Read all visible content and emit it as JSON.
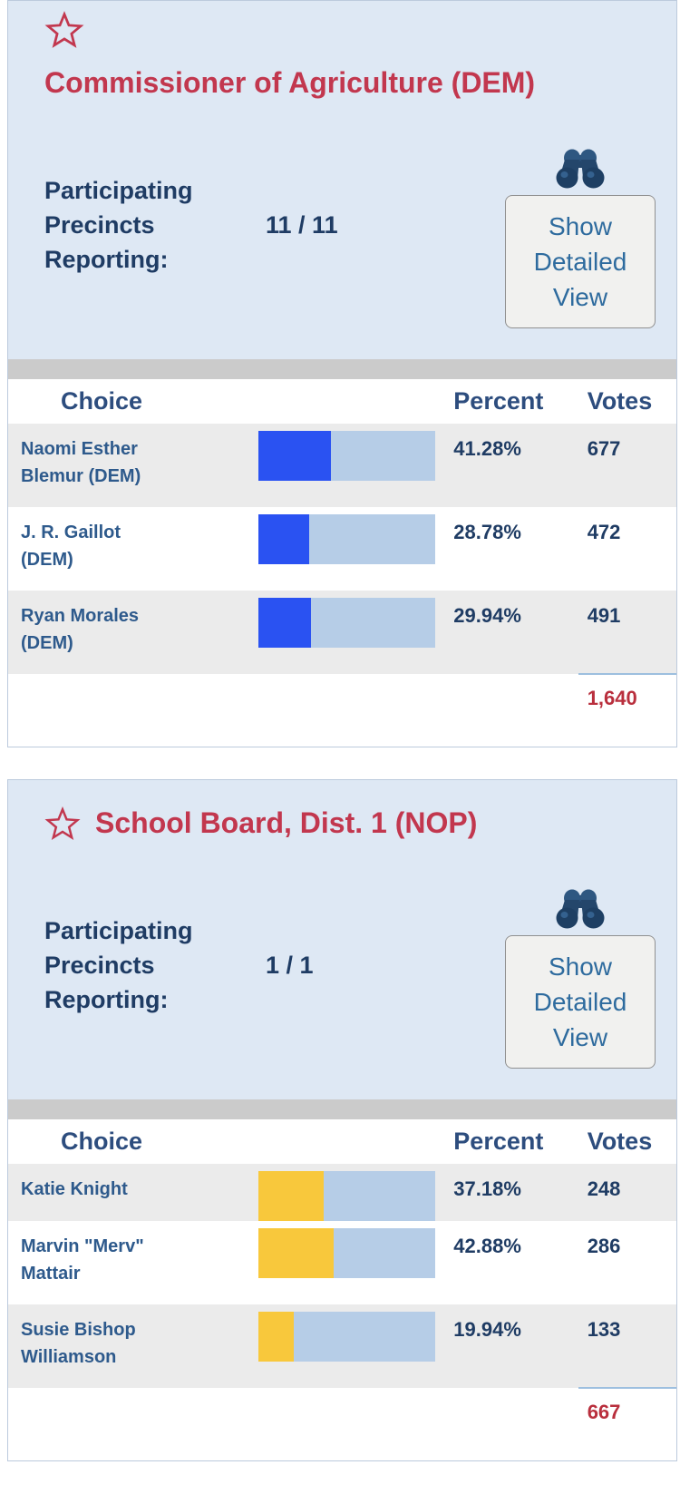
{
  "colors": {
    "card_bg": "#dee8f4",
    "card_border": "#bccadd",
    "title_red": "#c2374e",
    "navy_dark": "#1f3c64",
    "navy_text": "#2d4d7e",
    "name_blue": "#2e5a8c",
    "strip_gray": "#cbcbcb",
    "row_gray": "#ebebeb",
    "bar_track": "#b6cde7",
    "total_red": "#b92f3d",
    "total_rule": "#9dbfdf",
    "button_bg": "#f1f1ef",
    "button_border": "#909090",
    "button_text": "#2e6b9e",
    "binocular_dark": "#1e3f63",
    "binocular_mid": "#24466b",
    "binocular_light": "#2e5781"
  },
  "icons": {
    "star": "star-outline",
    "binoculars": "binoculars"
  },
  "contests": [
    {
      "title": "Commissioner of Agriculture (DEM)",
      "precincts_label": "Participating Precincts Reporting:",
      "precincts_value": "11 / 11",
      "detail_button_label": "Show Detailed View",
      "bar_color": "#2a52f2",
      "headers": {
        "choice": "Choice",
        "percent": "Percent",
        "votes": "Votes"
      },
      "rows": [
        {
          "choice": "Naomi Esther Blemur (DEM)",
          "percent": "41.28%",
          "votes": "677",
          "pct": 41.28
        },
        {
          "choice": "J. R. Gaillot (DEM)",
          "percent": "28.78%",
          "votes": "472",
          "pct": 28.78
        },
        {
          "choice": "Ryan Morales (DEM)",
          "percent": "29.94%",
          "votes": "491",
          "pct": 29.94
        }
      ],
      "total_votes": "1,640"
    },
    {
      "title": "School Board, Dist. 1 (NOP)",
      "precincts_label": "Participating Precincts Reporting:",
      "precincts_value": "1 / 1",
      "detail_button_label": "Show Detailed View",
      "bar_color": "#f8c83c",
      "headers": {
        "choice": "Choice",
        "percent": "Percent",
        "votes": "Votes"
      },
      "rows": [
        {
          "choice": "Katie Knight",
          "percent": "37.18%",
          "votes": "248",
          "pct": 37.18
        },
        {
          "choice": "Marvin \"Merv\" Mattair",
          "percent": "42.88%",
          "votes": "286",
          "pct": 42.88
        },
        {
          "choice": "Susie Bishop Williamson",
          "percent": "19.94%",
          "votes": "133",
          "pct": 19.94
        }
      ],
      "total_votes": "667"
    }
  ],
  "chart_data": [
    {
      "type": "bar",
      "title": "Commissioner of Agriculture (DEM)",
      "categories": [
        "Naomi Esther Blemur (DEM)",
        "J. R. Gaillot (DEM)",
        "Ryan Morales (DEM)"
      ],
      "series": [
        {
          "name": "Percent",
          "values": [
            41.28,
            28.78,
            29.94
          ]
        },
        {
          "name": "Votes",
          "values": [
            677,
            472,
            491
          ]
        }
      ],
      "xlabel": "",
      "ylabel": "Percent",
      "ylim": [
        0,
        100
      ],
      "total_votes": 1640,
      "legend_position": "none",
      "grid": false
    },
    {
      "type": "bar",
      "title": "School Board, Dist. 1 (NOP)",
      "categories": [
        "Katie Knight",
        "Marvin \"Merv\" Mattair",
        "Susie Bishop Williamson"
      ],
      "series": [
        {
          "name": "Percent",
          "values": [
            37.18,
            42.88,
            19.94
          ]
        },
        {
          "name": "Votes",
          "values": [
            248,
            286,
            133
          ]
        }
      ],
      "xlabel": "",
      "ylabel": "Percent",
      "ylim": [
        0,
        100
      ],
      "total_votes": 667,
      "legend_position": "none",
      "grid": false
    }
  ]
}
